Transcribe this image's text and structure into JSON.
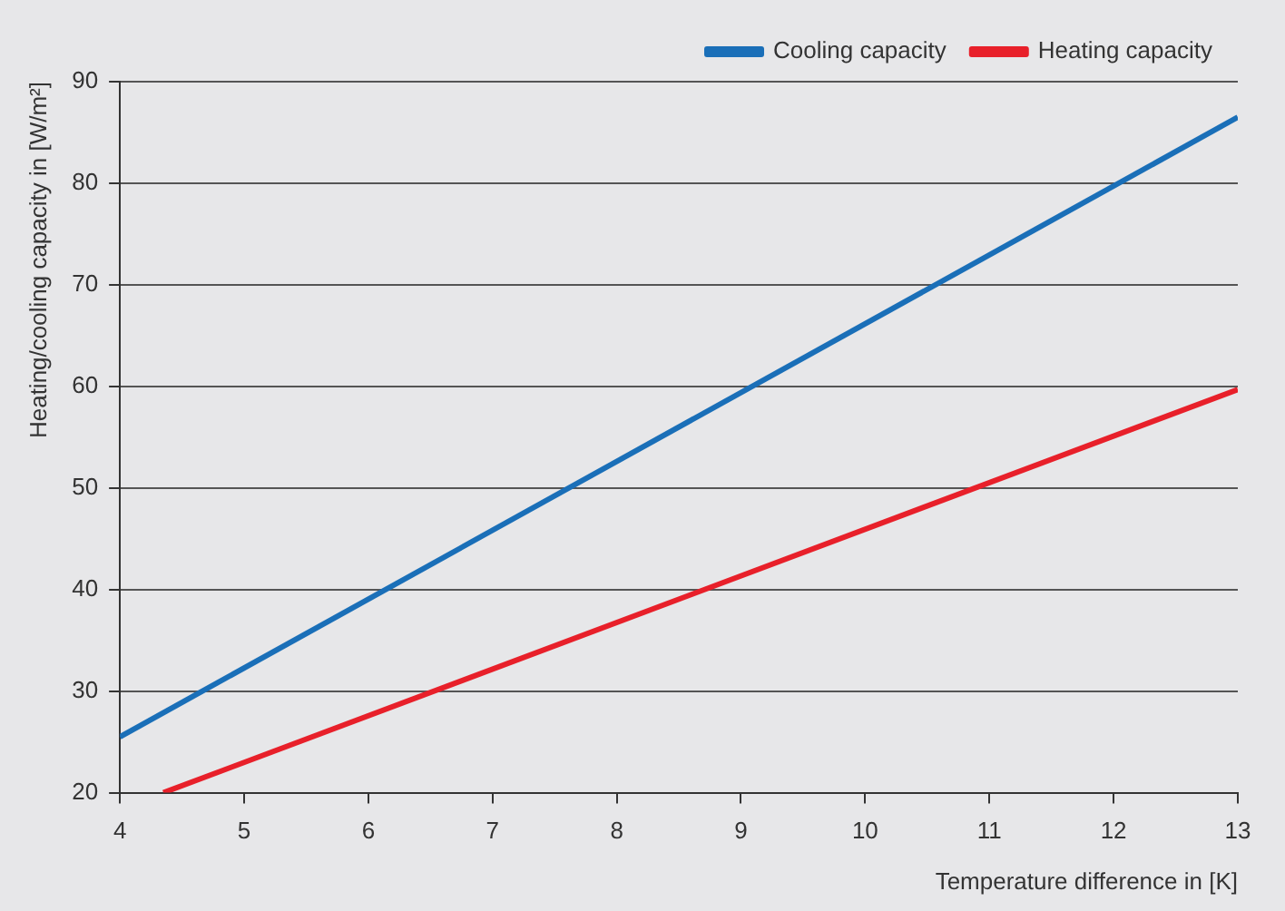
{
  "chart_data": {
    "type": "line",
    "xlabel": "Temperature difference in [K]",
    "ylabel": "Heating/cooling capacity in [W/m²]",
    "series": [
      {
        "name": "Cooling capacity",
        "color": "#1a6fb8",
        "x": [
          4,
          13
        ],
        "values": [
          25.5,
          86.5
        ]
      },
      {
        "name": "Heating capacity",
        "color": "#e8202a",
        "x": [
          4.35,
          13
        ],
        "values": [
          20,
          59.7
        ]
      }
    ],
    "xlim": [
      4,
      13
    ],
    "xticks": [
      4,
      5,
      6,
      7,
      8,
      9,
      10,
      11,
      12,
      13
    ],
    "ylim": [
      20,
      90
    ],
    "yticks": [
      20,
      30,
      40,
      50,
      60,
      70,
      80,
      90
    ],
    "grid": "y",
    "legend": "top right",
    "marker": "none",
    "line_style": "solid"
  }
}
